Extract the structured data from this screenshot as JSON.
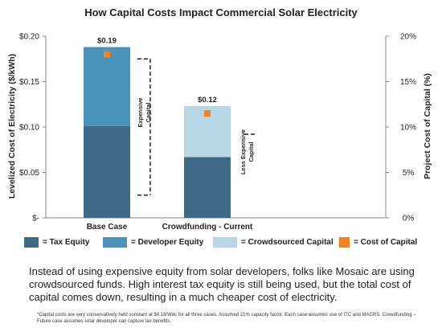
{
  "chart_data": {
    "type": "bar",
    "title": "How Capital Costs Impact Commercial Solar Electricity",
    "ylabel": "Levelized Cost of Electricity ($/kWh)",
    "y2label": "Project Cost of Capital (%)",
    "ylim": [
      0,
      0.2
    ],
    "y2lim": [
      0,
      20
    ],
    "yticks": [
      "$-",
      "$0.05",
      "$0.10",
      "$0.15",
      "$0.20"
    ],
    "y2ticks": [
      "0%",
      "5%",
      "10%",
      "15%",
      "20%"
    ],
    "categories": [
      "Base Case",
      "Crowdfunding - Current"
    ],
    "totals_labels": [
      "$0.19",
      "$0.12"
    ],
    "series": [
      {
        "name": "= Tax Equity",
        "color": "#3d6b87",
        "values": [
          0.101,
          0.067
        ]
      },
      {
        "name": "= Developer Equity",
        "color": "#4a93bb",
        "values": [
          0.087,
          0
        ]
      },
      {
        "name": "= Crowdsourced Capital",
        "color": "#b8d7e6",
        "values": [
          0,
          0.056
        ]
      }
    ],
    "cost_of_capital": {
      "name": "= Cost of Capital",
      "color": "#f58220",
      "values": [
        18,
        11.5
      ]
    },
    "annotations": [
      {
        "text": "Expensive Capital",
        "category": 0,
        "from": 2.5,
        "to": 17.5
      },
      {
        "text": "Less Expensive Capital",
        "category": 1,
        "from": 9.2,
        "to": 9.2
      }
    ],
    "grid": false,
    "legend_position": "bottom"
  },
  "caption": "Instead of using expensive equity from solar developers, folks like Mosaic are using crowdsourced funds. High interest tax equity is still being used, but the total cost of capital comes down, resulting in a much cheaper cost of electricity.",
  "footnote": "*Capital costs are very conservatively held constant at $4.18/Wdc for all three cases. Assumed 21% capacity factor. Each case assumes use of ITC and MACRS. Crowdfunding – Future case assumes solar developer can capture tax benefits."
}
